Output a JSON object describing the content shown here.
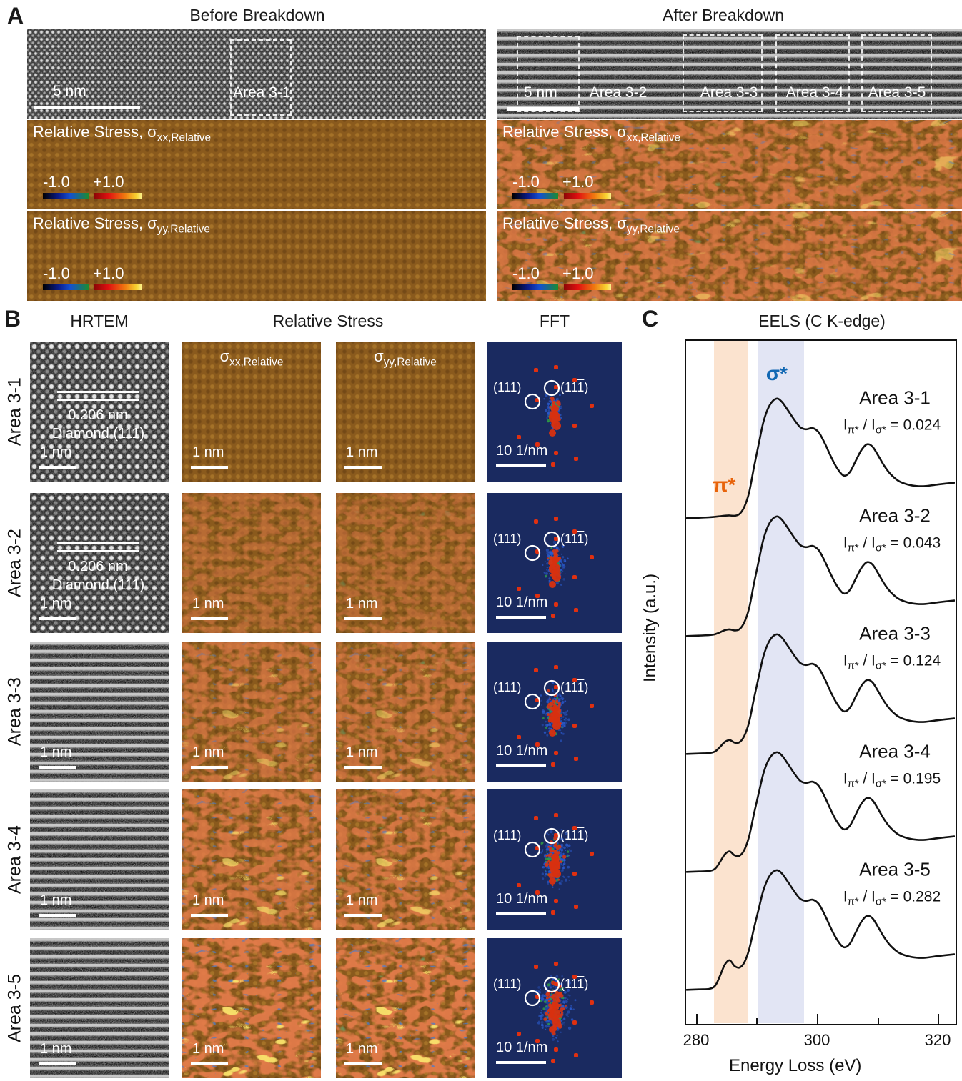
{
  "panelA": {
    "label": "A",
    "before": {
      "title": "Before Breakdown",
      "scale_bar": "5 nm",
      "area_label": "Area 3-1"
    },
    "after": {
      "title": "After Breakdown",
      "scale_bar": "5 nm",
      "area_labels": [
        "Area 3-2",
        "Area 3-3",
        "Area 3-4",
        "Area 3-5"
      ]
    },
    "stress_maps": {
      "xx_label_prefix": "Relative Stress, σ",
      "xx_label_sub": "xx,Relative",
      "yy_label_prefix": "Relative Stress, σ",
      "yy_label_sub": "yy,Relative",
      "colorbar_min": "-1.0",
      "colorbar_max": "+1.0"
    }
  },
  "panelB": {
    "label": "B",
    "headers": {
      "hrtem": "HRTEM",
      "stress": "Relative Stress",
      "fft": "FFT"
    },
    "stress_sublabels": [
      {
        "prefix": "σ",
        "sub": "xx,Relative"
      },
      {
        "prefix": "σ",
        "sub": "yy,Relative"
      }
    ],
    "fft": {
      "spot_left": "(111)",
      "spot_right_pre": "(11",
      "spot_right_bar": "1",
      "spot_right_post": ")",
      "scale_bar": "10 1/nm"
    },
    "rows": [
      {
        "area": "Area 3-1",
        "spacing": "0.206 nm",
        "plane": "Diamond (111)",
        "scale_bar": "1 nm",
        "disorder": 0
      },
      {
        "area": "Area 3-2",
        "spacing": "0.206 nm",
        "plane": "Diamond (111)",
        "scale_bar": "1 nm",
        "disorder": 1
      },
      {
        "area": "Area 3-3",
        "spacing": "",
        "plane": "",
        "scale_bar": "1 nm",
        "disorder": 2
      },
      {
        "area": "Area 3-4",
        "spacing": "",
        "plane": "",
        "scale_bar": "1 nm",
        "disorder": 3
      },
      {
        "area": "Area 3-5",
        "spacing": "",
        "plane": "",
        "scale_bar": "1 nm",
        "disorder": 4
      }
    ]
  },
  "panelC": {
    "label": "C",
    "title": "EELS (C K-edge)",
    "ratio_template": {
      "lhs_main": "I",
      "lhs_sub": "π*",
      "mid": " / ",
      "rhs_main": "I",
      "rhs_sub": "σ*",
      "eq": " = "
    }
  },
  "chart_data": {
    "type": "line",
    "title": "EELS (C K-edge)",
    "xlabel": "Energy Loss (eV)",
    "ylabel": "Intensity (a.u.)",
    "xlim": [
      278.4,
      322.8
    ],
    "x_ticks": [
      280,
      300,
      320
    ],
    "x_minor_ticks": [
      290,
      310
    ],
    "grid": false,
    "legend": "none",
    "bands": [
      {
        "label": "π*",
        "range_eV": [
          283.0,
          288.5
        ],
        "fill": "#fbe3cf",
        "label_color": "#e8630a"
      },
      {
        "label": "σ*",
        "range_eV": [
          290.2,
          297.9
        ],
        "fill": "#e2e5f4",
        "label_color": "#1268b3"
      }
    ],
    "stacked_offsets_note": "five spectra stacked top-to-bottom with equal vertical offsets, intensity in arbitrary units",
    "series": [
      {
        "name": "Area 3-1",
        "ratio_value": "0.024",
        "pi_bump": 0.012
      },
      {
        "name": "Area 3-2",
        "ratio_value": "0.043",
        "pi_bump": 0.045
      },
      {
        "name": "Area 3-3",
        "ratio_value": "0.124",
        "pi_bump": 0.105
      },
      {
        "name": "Area 3-4",
        "ratio_value": "0.195",
        "pi_bump": 0.16
      },
      {
        "name": "Area 3-5",
        "ratio_value": "0.282",
        "pi_bump": 0.235
      }
    ],
    "base_curve_eV_v_bumpweight": [
      [
        278.5,
        0.004,
        0
      ],
      [
        280.5,
        0.008,
        0
      ],
      [
        282.2,
        0.012,
        0
      ],
      [
        283.2,
        0.015,
        0.1
      ],
      [
        284.0,
        0.015,
        0.45
      ],
      [
        284.8,
        0.015,
        0.85
      ],
      [
        285.6,
        0.015,
        1.0
      ],
      [
        286.4,
        0.015,
        0.8
      ],
      [
        287.2,
        0.03,
        0.68
      ],
      [
        288.0,
        0.09,
        0.6
      ],
      [
        288.8,
        0.21,
        0.55
      ],
      [
        289.6,
        0.42,
        0.4
      ],
      [
        290.4,
        0.62,
        0.25
      ],
      [
        291.2,
        0.81,
        0.12
      ],
      [
        292.2,
        0.945,
        0.04
      ],
      [
        293.3,
        1.0,
        0
      ],
      [
        294.2,
        0.975,
        0
      ],
      [
        295.2,
        0.905,
        0
      ],
      [
        296.2,
        0.83,
        0
      ],
      [
        297.2,
        0.765,
        0
      ],
      [
        298.2,
        0.745,
        0
      ],
      [
        299.3,
        0.755,
        0
      ],
      [
        300.3,
        0.72,
        0
      ],
      [
        301.3,
        0.63,
        0
      ],
      [
        302.3,
        0.52,
        0
      ],
      [
        303.3,
        0.425,
        0
      ],
      [
        304.4,
        0.36,
        0
      ],
      [
        305.4,
        0.385,
        0
      ],
      [
        306.4,
        0.48,
        0
      ],
      [
        307.4,
        0.575,
        0
      ],
      [
        308.3,
        0.62,
        0
      ],
      [
        309.2,
        0.6,
        0
      ],
      [
        310.2,
        0.52,
        0
      ],
      [
        311.2,
        0.435,
        0
      ],
      [
        312.2,
        0.37,
        0
      ],
      [
        313.5,
        0.315,
        0
      ],
      [
        315.0,
        0.285,
        0
      ],
      [
        316.5,
        0.272,
        0
      ],
      [
        318.0,
        0.272,
        0
      ],
      [
        320.0,
        0.285,
        0
      ],
      [
        322.7,
        0.3,
        0
      ]
    ],
    "colors": {
      "curve": "#111111",
      "fft_bg": "#1a2a60",
      "stress_brown": "#8a5a1d"
    }
  }
}
